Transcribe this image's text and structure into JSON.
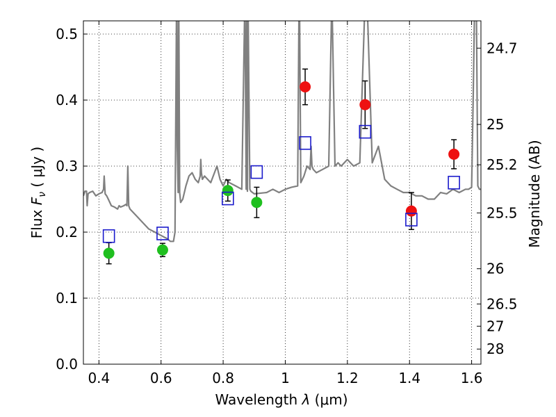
{
  "chart_data": {
    "type": "scatter",
    "xlabel": "Wavelength  λ (μm)",
    "ylabel": "Flux  Fν  ( μJy )",
    "ylabel_parts": {
      "prefix": "Flux  ",
      "symbol": "F",
      "subscript": "ν",
      "suffix": "  ( μJy )"
    },
    "xlabel_parts": {
      "prefix": "Wavelength  ",
      "symbol": "λ",
      "suffix": " (μm)"
    },
    "y2label": "Magnitude (AB)",
    "xlim": [
      0.35,
      1.63
    ],
    "ylim": [
      0.0,
      0.52
    ],
    "grid": true,
    "x_ticks": [
      {
        "value": 0.4,
        "label": "0.4"
      },
      {
        "value": 0.6,
        "label": "0.6"
      },
      {
        "value": 0.8,
        "label": "0.8"
      },
      {
        "value": 1.0,
        "label": "1"
      },
      {
        "value": 1.2,
        "label": "1.2"
      },
      {
        "value": 1.4,
        "label": "1.4"
      },
      {
        "value": 1.6,
        "label": "1.6"
      }
    ],
    "y_ticks": [
      {
        "value": 0.0,
        "label": "0.0"
      },
      {
        "value": 0.1,
        "label": "0.1"
      },
      {
        "value": 0.2,
        "label": "0.2"
      },
      {
        "value": 0.3,
        "label": "0.3"
      },
      {
        "value": 0.4,
        "label": "0.4"
      },
      {
        "value": 0.5,
        "label": "0.5"
      }
    ],
    "y2_ticks": [
      {
        "mag": 24.7,
        "label": "24.7"
      },
      {
        "mag": 25,
        "label": "25"
      },
      {
        "mag": 25.2,
        "label": "25.2"
      },
      {
        "mag": 25.5,
        "label": "25.5"
      },
      {
        "mag": 26,
        "label": "26"
      },
      {
        "mag": 26.5,
        "label": "26.5"
      },
      {
        "mag": 27,
        "label": "27"
      },
      {
        "mag": 28,
        "label": "28"
      }
    ],
    "colors": {
      "model": "#808080",
      "green": "#1fbf1f",
      "red": "#ee1111",
      "blue_box": "#1a1acc",
      "error": "#000000"
    },
    "series": [
      {
        "name": "model spectrum",
        "kind": "line",
        "x": [
          0.35,
          0.355,
          0.36,
          0.362,
          0.365,
          0.37,
          0.38,
          0.39,
          0.4,
          0.41,
          0.415,
          0.417,
          0.42,
          0.425,
          0.43,
          0.44,
          0.45,
          0.46,
          0.465,
          0.47,
          0.48,
          0.487,
          0.49,
          0.493,
          0.496,
          0.5,
          0.52,
          0.54,
          0.56,
          0.58,
          0.6,
          0.62,
          0.63,
          0.64,
          0.645,
          0.65,
          0.652,
          0.655,
          0.656,
          0.657,
          0.66,
          0.663,
          0.67,
          0.68,
          0.69,
          0.7,
          0.71,
          0.72,
          0.726,
          0.728,
          0.73,
          0.733,
          0.74,
          0.76,
          0.78,
          0.79,
          0.8,
          0.81,
          0.82,
          0.84,
          0.86,
          0.87,
          0.874,
          0.876,
          0.878,
          0.88,
          0.886,
          0.889,
          0.9,
          0.94,
          0.96,
          0.98,
          1.0,
          1.02,
          1.04,
          1.045,
          1.05,
          1.06,
          1.07,
          1.08,
          1.083,
          1.086,
          1.09,
          1.1,
          1.12,
          1.14,
          1.15,
          1.16,
          1.17,
          1.18,
          1.2,
          1.22,
          1.24,
          1.26,
          1.28,
          1.3,
          1.32,
          1.34,
          1.36,
          1.38,
          1.4,
          1.42,
          1.44,
          1.46,
          1.48,
          1.5,
          1.52,
          1.54,
          1.56,
          1.58,
          1.59,
          1.6,
          1.605,
          1.61,
          1.615,
          1.62,
          1.625,
          1.63
        ],
        "y": [
          0.255,
          0.262,
          0.262,
          0.24,
          0.258,
          0.26,
          0.262,
          0.255,
          0.258,
          0.26,
          0.265,
          0.285,
          0.258,
          0.255,
          0.25,
          0.24,
          0.238,
          0.235,
          0.24,
          0.238,
          0.24,
          0.242,
          0.24,
          0.3,
          0.24,
          0.235,
          0.225,
          0.215,
          0.205,
          0.2,
          0.195,
          0.19,
          0.186,
          0.186,
          0.2,
          0.56,
          0.33,
          0.26,
          0.56,
          0.56,
          0.26,
          0.245,
          0.25,
          0.27,
          0.285,
          0.29,
          0.28,
          0.275,
          0.285,
          0.31,
          0.29,
          0.28,
          0.285,
          0.275,
          0.3,
          0.28,
          0.27,
          0.28,
          0.275,
          0.27,
          0.265,
          0.56,
          0.265,
          0.56,
          0.262,
          0.56,
          0.265,
          0.262,
          0.258,
          0.26,
          0.265,
          0.26,
          0.265,
          0.268,
          0.27,
          0.6,
          0.275,
          0.285,
          0.3,
          0.295,
          0.33,
          0.3,
          0.295,
          0.29,
          0.295,
          0.3,
          0.56,
          0.3,
          0.305,
          0.3,
          0.31,
          0.3,
          0.305,
          0.6,
          0.305,
          0.33,
          0.28,
          0.27,
          0.265,
          0.26,
          0.26,
          0.255,
          0.255,
          0.25,
          0.25,
          0.26,
          0.258,
          0.265,
          0.26,
          0.265,
          0.265,
          0.268,
          0.4,
          0.56,
          0.56,
          0.27,
          0.265,
          0.265
        ]
      },
      {
        "name": "green points",
        "kind": "point",
        "points": [
          {
            "x": 0.432,
            "y": 0.168,
            "err": 0.016
          },
          {
            "x": 0.605,
            "y": 0.173,
            "err": 0.01
          },
          {
            "x": 0.815,
            "y": 0.263,
            "err": 0.016
          },
          {
            "x": 0.908,
            "y": 0.245,
            "err": 0.023
          }
        ]
      },
      {
        "name": "red points",
        "kind": "point",
        "points": [
          {
            "x": 1.064,
            "y": 0.42,
            "err": 0.027
          },
          {
            "x": 1.257,
            "y": 0.393,
            "err": 0.036
          },
          {
            "x": 1.406,
            "y": 0.232,
            "err": 0.028
          },
          {
            "x": 1.543,
            "y": 0.318,
            "err": 0.022
          }
        ]
      },
      {
        "name": "blue boxes",
        "kind": "box",
        "points": [
          {
            "x": 0.432,
            "y": 0.194
          },
          {
            "x": 0.605,
            "y": 0.198
          },
          {
            "x": 0.815,
            "y": 0.251
          },
          {
            "x": 0.908,
            "y": 0.291
          },
          {
            "x": 1.064,
            "y": 0.335
          },
          {
            "x": 1.257,
            "y": 0.352
          },
          {
            "x": 1.406,
            "y": 0.219
          },
          {
            "x": 1.543,
            "y": 0.275
          }
        ]
      }
    ]
  }
}
